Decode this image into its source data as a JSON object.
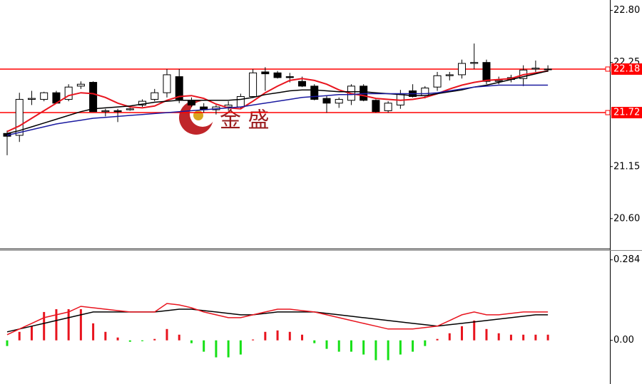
{
  "chart_data": [
    {
      "type": "candlestick",
      "watermark": "金 盛",
      "up_color": "#ffffff",
      "down_color": "#000000",
      "outline_color": "#000000",
      "open": [
        21.5,
        21.48,
        21.86,
        21.86,
        21.93,
        21.86,
        22.0,
        22.04,
        21.73,
        21.74,
        21.75,
        21.8,
        21.86,
        21.93,
        22.1,
        21.84,
        21.78,
        21.75,
        21.78,
        21.78,
        21.89,
        22.15,
        22.14,
        22.1,
        22.05,
        22.0,
        21.87,
        21.82,
        21.85,
        22.0,
        21.85,
        21.74,
        21.8,
        21.95,
        21.9,
        21.99,
        22.11,
        22.12,
        22.24,
        22.25,
        22.05,
        22.07,
        22.08,
        22.18,
        22.18
      ],
      "high": [
        21.53,
        21.93,
        21.95,
        21.94,
        21.95,
        22.02,
        22.05,
        22.05,
        21.76,
        21.76,
        21.77,
        21.86,
        21.97,
        22.18,
        22.18,
        21.88,
        21.82,
        21.8,
        21.84,
        21.92,
        22.18,
        22.2,
        22.16,
        22.14,
        22.1,
        22.02,
        21.9,
        21.88,
        22.02,
        22.02,
        21.86,
        21.84,
        21.96,
        22.02,
        22.0,
        22.15,
        22.15,
        22.28,
        22.45,
        22.28,
        22.1,
        22.12,
        22.22,
        22.27,
        22.22
      ],
      "low": [
        21.27,
        21.41,
        21.8,
        21.84,
        21.82,
        21.84,
        21.97,
        21.73,
        21.68,
        21.62,
        21.74,
        21.78,
        21.84,
        21.88,
        21.82,
        21.78,
        21.72,
        21.7,
        21.74,
        21.76,
        21.88,
        21.95,
        22.08,
        22.04,
        21.99,
        21.85,
        21.72,
        21.77,
        21.8,
        21.84,
        21.72,
        21.72,
        21.76,
        21.88,
        21.87,
        21.95,
        22.06,
        22.08,
        22.18,
        22.02,
        22.02,
        22.04,
        22.0,
        22.15,
        22.15
      ],
      "close": [
        21.47,
        21.86,
        21.87,
        21.93,
        21.82,
        21.99,
        22.02,
        21.73,
        21.74,
        21.73,
        21.76,
        21.84,
        21.93,
        22.12,
        21.86,
        21.8,
        21.75,
        21.78,
        21.8,
        21.89,
        22.14,
        22.13,
        22.09,
        22.09,
        22.0,
        21.86,
        21.82,
        21.86,
        22.0,
        21.85,
        21.73,
        21.82,
        21.92,
        21.89,
        21.98,
        22.11,
        22.12,
        22.24,
        22.25,
        22.05,
        22.06,
        22.09,
        22.17,
        22.19,
        22.18
      ],
      "series": [
        {
          "color": "#e8141e",
          "values": [
            21.52,
            21.58,
            21.66,
            21.74,
            21.82,
            21.9,
            21.93,
            21.92,
            21.88,
            21.82,
            21.78,
            21.77,
            21.79,
            21.85,
            21.89,
            21.9,
            21.87,
            21.81,
            21.77,
            21.76,
            21.84,
            21.93,
            22.0,
            22.06,
            22.08,
            22.06,
            22.02,
            21.96,
            21.92,
            21.9,
            21.87,
            21.86,
            21.85,
            21.86,
            21.88,
            21.92,
            21.97,
            22.01,
            22.04,
            22.06,
            22.07,
            22.08,
            22.12,
            22.14,
            22.16
          ]
        },
        {
          "color": "#000000",
          "values": [
            21.5,
            21.53,
            21.57,
            21.61,
            21.65,
            21.69,
            21.73,
            21.76,
            21.77,
            21.78,
            21.79,
            21.81,
            21.83,
            21.84,
            21.85,
            21.85,
            21.85,
            21.85,
            21.85,
            21.86,
            21.88,
            21.91,
            21.93,
            21.95,
            21.96,
            21.96,
            21.95,
            21.94,
            21.94,
            21.94,
            21.93,
            21.92,
            21.91,
            21.9,
            21.9,
            21.92,
            21.94,
            21.96,
            21.99,
            22.01,
            22.04,
            22.07,
            22.1,
            22.13,
            22.16
          ]
        },
        {
          "color": "#1a1aa0",
          "values": [
            21.48,
            21.51,
            21.54,
            21.57,
            21.6,
            21.62,
            21.64,
            21.66,
            21.67,
            21.68,
            21.69,
            21.7,
            21.71,
            21.72,
            21.73,
            21.74,
            21.75,
            21.76,
            21.77,
            21.78,
            21.8,
            21.82,
            21.84,
            21.86,
            21.88,
            21.89,
            21.9,
            21.91,
            21.91,
            21.92,
            21.92,
            21.92,
            21.92,
            21.92,
            21.92,
            21.93,
            21.95,
            21.97,
            21.99,
            22.0,
            22.01,
            22.01,
            22.01,
            22.01,
            22.01
          ]
        }
      ],
      "hlines": [
        22.18,
        21.72
      ],
      "hline_color": "#ff0000",
      "ylim": [
        20.29,
        22.91
      ],
      "yticks": [
        {
          "value": 22.8,
          "label": "22.80"
        },
        22.25,
        21.15,
        {
          "value": 20.6,
          "label": "20.60"
        }
      ]
    },
    {
      "type": "bar",
      "up_color": "#e8141e",
      "down_color": "#16e016",
      "values": [
        -0.02,
        0.03,
        0.05,
        0.1,
        0.11,
        0.11,
        0.11,
        0.06,
        0.03,
        0.01,
        -0.005,
        -0.003,
        0.005,
        0.04,
        0.02,
        -0.01,
        -0.04,
        -0.06,
        -0.06,
        -0.05,
        0.003,
        0.03,
        0.035,
        0.03,
        0.02,
        -0.01,
        -0.03,
        -0.04,
        -0.04,
        -0.05,
        -0.07,
        -0.07,
        -0.05,
        -0.04,
        -0.02,
        0.005,
        0.025,
        0.05,
        0.07,
        0.04,
        0.025,
        0.02,
        0.02,
        0.02,
        0.02
      ],
      "series": [
        {
          "color": "#000000",
          "values": [
            0.03,
            0.04,
            0.05,
            0.06,
            0.07,
            0.08,
            0.09,
            0.1,
            0.1,
            0.1,
            0.1,
            0.1,
            0.1,
            0.105,
            0.11,
            0.11,
            0.105,
            0.1,
            0.095,
            0.09,
            0.09,
            0.095,
            0.1,
            0.1,
            0.1,
            0.1,
            0.095,
            0.09,
            0.085,
            0.08,
            0.075,
            0.07,
            0.065,
            0.06,
            0.055,
            0.05,
            0.055,
            0.06,
            0.065,
            0.07,
            0.075,
            0.08,
            0.085,
            0.09,
            0.09
          ]
        },
        {
          "color": "#e8141e",
          "values": [
            0.02,
            0.04,
            0.06,
            0.08,
            0.09,
            0.1,
            0.12,
            0.115,
            0.11,
            0.105,
            0.1,
            0.1,
            0.1,
            0.13,
            0.125,
            0.115,
            0.1,
            0.09,
            0.08,
            0.08,
            0.09,
            0.1,
            0.11,
            0.11,
            0.105,
            0.1,
            0.09,
            0.08,
            0.07,
            0.06,
            0.05,
            0.04,
            0.04,
            0.04,
            0.045,
            0.05,
            0.07,
            0.09,
            0.1,
            0.09,
            0.09,
            0.095,
            0.1,
            0.1,
            0.1
          ]
        }
      ],
      "ylim": [
        -0.154,
        0.316
      ],
      "yticks": [
        0.284,
        {
          "value": 0,
          "label": "0.00"
        }
      ]
    }
  ]
}
